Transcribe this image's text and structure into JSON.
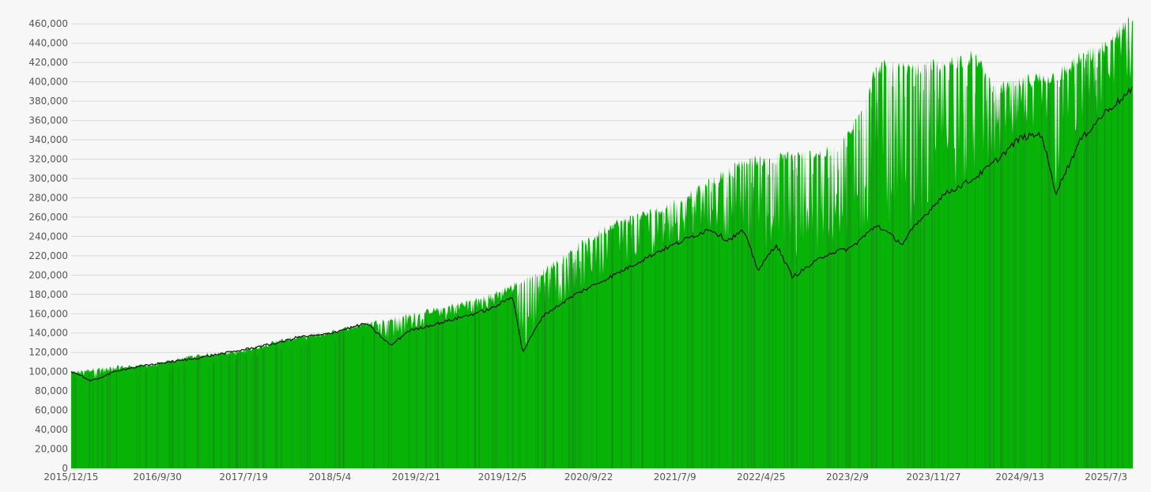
{
  "colors": {
    "background": "#f7f7f7",
    "grid": "#d9d9d9",
    "area_fill": "#07b307",
    "area_dark": "#1a8a1a",
    "line": "#111111",
    "tick_text": "#555555"
  },
  "chart_data": {
    "type": "area",
    "title": "",
    "xlabel": "",
    "ylabel": "",
    "ylim": [
      0,
      470000
    ],
    "yticks": [
      0,
      20000,
      40000,
      60000,
      80000,
      100000,
      120000,
      140000,
      160000,
      180000,
      200000,
      220000,
      240000,
      260000,
      280000,
      300000,
      320000,
      340000,
      360000,
      380000,
      400000,
      420000,
      440000,
      460000
    ],
    "ytick_labels": [
      "0",
      "20,000",
      "40,000",
      "60,000",
      "80,000",
      "100,000",
      "120,000",
      "140,000",
      "160,000",
      "180,000",
      "200,000",
      "220,000",
      "240,000",
      "260,000",
      "280,000",
      "300,000",
      "320,000",
      "340,000",
      "360,000",
      "380,000",
      "400,000",
      "420,000",
      "440,000",
      "460,000"
    ],
    "xtick_labels": [
      "2015/12/15",
      "2016/9/30",
      "2017/7/19",
      "2018/5/4",
      "2019/2/21",
      "2019/12/5",
      "2020/9/22",
      "2021/7/9",
      "2022/4/25",
      "2023/2/9",
      "2023/11/27",
      "2024/9/13",
      "2025/7/3"
    ],
    "xlim": [
      "2015-12-15",
      "2025-12-31"
    ],
    "grid": true,
    "legend": "none",
    "series": [
      {
        "kind": "area",
        "x": [
          "2015-12-15",
          "2016-02-01",
          "2016-06-01",
          "2016-09-30",
          "2017-02-01",
          "2017-07-19",
          "2017-12-01",
          "2018-05-04",
          "2018-10-01",
          "2019-02-21",
          "2019-07-01",
          "2019-12-05",
          "2020-02-15",
          "2020-06-01",
          "2020-09-22",
          "2021-02-01",
          "2021-07-09",
          "2021-12-01",
          "2022-04-25",
          "2022-09-01",
          "2023-02-09",
          "2023-05-01",
          "2023-08-01",
          "2023-11-27",
          "2024-03-15",
          "2024-07-01",
          "2024-09-13",
          "2025-01-01",
          "2025-04-15",
          "2025-07-03",
          "2025-10-01",
          "2025-12-31"
        ],
        "values": [
          100000,
          102000,
          106000,
          108000,
          117000,
          121000,
          133000,
          140000,
          151000,
          159000,
          168000,
          180000,
          190000,
          205000,
          230000,
          255000,
          270000,
          292000,
          320000,
          325000,
          330000,
          350000,
          420000,
          415000,
          422000,
          430000,
          395000,
          405000,
          410000,
          428000,
          440000,
          475000
        ]
      },
      {
        "kind": "line",
        "x": [
          "2015-12-15",
          "2016-01-20",
          "2016-02-20",
          "2016-06-01",
          "2016-09-30",
          "2017-02-01",
          "2017-07-19",
          "2017-12-01",
          "2018-02-08",
          "2018-05-04",
          "2018-10-01",
          "2018-12-24",
          "2019-02-21",
          "2019-07-01",
          "2019-12-05",
          "2020-02-19",
          "2020-03-23",
          "2020-06-01",
          "2020-09-22",
          "2021-02-01",
          "2021-07-09",
          "2021-12-31",
          "2022-03-01",
          "2022-04-25",
          "2022-06-16",
          "2022-08-16",
          "2022-10-12",
          "2023-02-09",
          "2023-05-01",
          "2023-07-31",
          "2023-10-27",
          "2023-11-27",
          "2024-03-15",
          "2024-07-01",
          "2024-09-13",
          "2024-12-06",
          "2025-02-19",
          "2025-04-08",
          "2025-07-03",
          "2025-10-01",
          "2025-12-31"
        ],
        "values": [
          100000,
          96000,
          90000,
          102000,
          108000,
          113000,
          122000,
          130000,
          136000,
          138000,
          150000,
          127000,
          142000,
          152000,
          165000,
          178000,
          120000,
          158000,
          180000,
          200000,
          225000,
          248000,
          236000,
          246000,
          205000,
          232000,
          198000,
          222000,
          228000,
          252000,
          232000,
          246000,
          283000,
          300000,
          318000,
          342000,
          346000,
          285000,
          340000,
          370000,
          392000
        ]
      }
    ]
  }
}
